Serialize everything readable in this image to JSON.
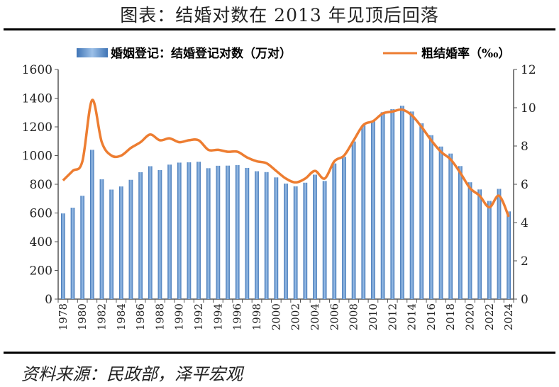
{
  "title": "图表：结婚对数在 2013 年见顶后回落",
  "source": "资料来源：民政部，泽平宏观",
  "chart_data": {
    "type": "bar+line",
    "categories": [
      1978,
      1979,
      1980,
      1981,
      1982,
      1983,
      1984,
      1985,
      1986,
      1987,
      1988,
      1989,
      1990,
      1991,
      1992,
      1993,
      1994,
      1995,
      1996,
      1997,
      1998,
      1999,
      2000,
      2001,
      2002,
      2003,
      2004,
      2005,
      2006,
      2007,
      2008,
      2009,
      2010,
      2011,
      2012,
      2013,
      2014,
      2015,
      2016,
      2017,
      2018,
      2019,
      2020,
      2021,
      2022,
      2023,
      2024
    ],
    "xtick_labels": [
      "1978",
      "1980",
      "1982",
      "1984",
      "1986",
      "1988",
      "1990",
      "1992",
      "1994",
      "1996",
      "1998",
      "2000",
      "2002",
      "2004",
      "2006",
      "2008",
      "2010",
      "2012",
      "2014",
      "2016",
      "2018",
      "2020",
      "2022",
      "2024"
    ],
    "series": [
      {
        "name": "婚姻登记：结婚登记对数（万对）",
        "type": "bar",
        "axis": "left",
        "color": "#5b8fc9",
        "values": [
          597,
          637,
          720,
          1040,
          835,
          763,
          785,
          831,
          884,
          926,
          899,
          937,
          951,
          953,
          957,
          912,
          929,
          930,
          934,
          914,
          891,
          885,
          848,
          805,
          786,
          811,
          867,
          823,
          945,
          991,
          1098,
          1212,
          1241,
          1302,
          1324,
          1347,
          1307,
          1225,
          1142,
          1063,
          1014,
          927,
          814,
          764,
          684,
          768,
          611
        ]
      },
      {
        "name": "粗结婚率（‰）",
        "type": "line",
        "axis": "right",
        "color": "#ed7d31",
        "values": [
          6.2,
          6.7,
          7.2,
          10.4,
          8.2,
          7.5,
          7.5,
          7.9,
          8.2,
          8.6,
          8.3,
          8.4,
          8.2,
          8.3,
          8.3,
          7.8,
          7.8,
          7.7,
          7.7,
          7.4,
          7.2,
          7.1,
          6.7,
          6.3,
          6.1,
          6.3,
          6.7,
          6.3,
          7.2,
          7.5,
          8.3,
          9.1,
          9.3,
          9.7,
          9.8,
          9.9,
          9.6,
          9.0,
          8.3,
          7.7,
          7.3,
          6.6,
          5.8,
          5.4,
          4.8,
          5.4,
          4.3
        ]
      }
    ],
    "y_left": {
      "range": [
        0,
        1600
      ],
      "ticks": [
        "0",
        "200",
        "400",
        "600",
        "800",
        "1000",
        "1200",
        "1400",
        "1600"
      ]
    },
    "y_right": {
      "range": [
        0,
        12
      ],
      "ticks": [
        "0",
        "2",
        "4",
        "6",
        "8",
        "10",
        "12"
      ]
    },
    "grid": false,
    "legend": "top"
  }
}
